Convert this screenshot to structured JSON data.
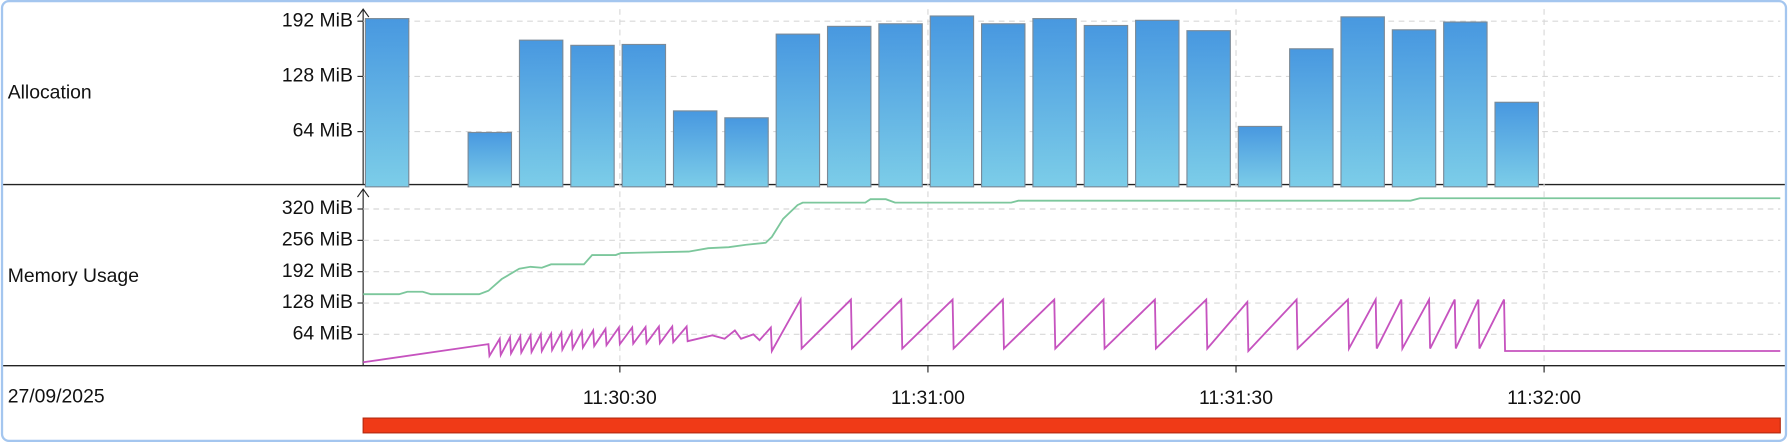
{
  "chart_data": [
    {
      "type": "histogram",
      "title": "Allocation",
      "bins": [
        41405,
        41410,
        41415,
        41420,
        41425,
        41430,
        41435,
        41440,
        41445,
        41450,
        41455,
        41460,
        41465,
        41470,
        41475,
        41480,
        41485,
        41490,
        41495,
        41500,
        41505,
        41510,
        41515,
        41520
      ],
      "values": [
        195,
        null,
        63,
        170,
        164,
        165,
        88,
        80,
        177,
        186,
        189,
        198,
        189,
        195,
        187,
        193,
        181,
        70,
        160,
        197,
        182,
        191,
        98
      ],
      "color": "#4a9be0",
      "xlim": [
        41405,
        41543
      ],
      "ylim": [
        0,
        206
      ],
      "yticks": [
        {
          "value": 64,
          "label": "64 MiB"
        },
        {
          "value": 128,
          "label": "128 MiB"
        },
        {
          "value": 192,
          "label": "192 MiB"
        }
      ],
      "grid": true
    },
    {
      "type": "line",
      "title": "Memory Usage",
      "xlabel": "27/09/2025",
      "series": [
        {
          "color": "#7cc79c",
          "x": [
            41405,
            41408.5,
            41409.3,
            41410.8,
            41411.6,
            41416.3,
            41417.2,
            41418.5,
            41420.2,
            41421.3,
            41422.4,
            41423.3,
            41426.5,
            41427.3,
            41429.6,
            41430.1,
            41436.7,
            41438.6,
            41440.6,
            41442.3,
            41444.2,
            41444.8,
            41445.9,
            41447.3,
            41447.8,
            41453.9,
            41454.4,
            41455.9,
            41456.8,
            41468.1,
            41468.8,
            41507,
            41507.9,
            41543
          ],
          "values": [
            146,
            146,
            151,
            151,
            146,
            146,
            153,
            177,
            198,
            202,
            200,
            207,
            207,
            226,
            226,
            230,
            233,
            240,
            242,
            247,
            251,
            263,
            300,
            328,
            333,
            333,
            340,
            340,
            333,
            333,
            337,
            337,
            342,
            342
          ]
        },
        {
          "color": "#c653bf",
          "x": [
            41405,
            41417.2,
            41417.3,
            41418.3,
            41418.4,
            41419.3,
            41419.4,
            41420.3,
            41420.4,
            41421.3,
            41421.4,
            41422.3,
            41422.4,
            41423.3,
            41423.4,
            41424.3,
            41424.4,
            41425.3,
            41425.4,
            41426.3,
            41426.4,
            41427.4,
            41427.5,
            41428.6,
            41428.7,
            41429.9,
            41430,
            41431.2,
            41431.3,
            41432.5,
            41432.6,
            41433.8,
            41433.9,
            41435.1,
            41435.2,
            41436.5,
            41436.6,
            41439,
            41440.2,
            41441.2,
            41441.8,
            41443,
            41443.6,
            41444.7,
            41444.8,
            41447.6,
            41447.7,
            41452.5,
            41452.6,
            41457.4,
            41457.5,
            41462.4,
            41462.5,
            41467.3,
            41467.4,
            41472.3,
            41472.4,
            41477.1,
            41477.2,
            41482.1,
            41482.2,
            41487.1,
            41487.2,
            41491.1,
            41491.2,
            41495.9,
            41496,
            41500.9,
            41501,
            41503.6,
            41503.7,
            41506.1,
            41506.2,
            41508.8,
            41508.9,
            41511.3,
            41511.4,
            41513.6,
            41513.7,
            41516.1,
            41516.2,
            41543
          ],
          "values": [
            7,
            44,
            20,
            55,
            22,
            58,
            25,
            60,
            27,
            62,
            28,
            64,
            30,
            65,
            32,
            67,
            33,
            69,
            35,
            70,
            37,
            72,
            40,
            75,
            42,
            78,
            44,
            78,
            45,
            79,
            46,
            80,
            46,
            80,
            48,
            80,
            50,
            62,
            55,
            72,
            55,
            64,
            52,
            78,
            30,
            135,
            35,
            135,
            35,
            135,
            35,
            135,
            35,
            135,
            35,
            135,
            35,
            135,
            35,
            135,
            35,
            135,
            35,
            130,
            30,
            135,
            35,
            135,
            35,
            135,
            35,
            135,
            35,
            135,
            35,
            135,
            35,
            135,
            35,
            135,
            30,
            30
          ]
        }
      ],
      "xlim": [
        41405,
        41543
      ],
      "ylim": [
        0,
        356
      ],
      "xticks": [
        {
          "value": 41430,
          "label": "11:30:30"
        },
        {
          "value": 41460,
          "label": "11:31:00"
        },
        {
          "value": 41490,
          "label": "11:31:30"
        },
        {
          "value": 41520,
          "label": "11:32:00"
        }
      ],
      "yticks": [
        {
          "value": 64,
          "label": "64 MiB"
        },
        {
          "value": 128,
          "label": "128 MiB"
        },
        {
          "value": 192,
          "label": "192 MiB"
        },
        {
          "value": 256,
          "label": "256 MiB"
        },
        {
          "value": 320,
          "label": "320 MiB"
        }
      ],
      "grid": true
    }
  ]
}
